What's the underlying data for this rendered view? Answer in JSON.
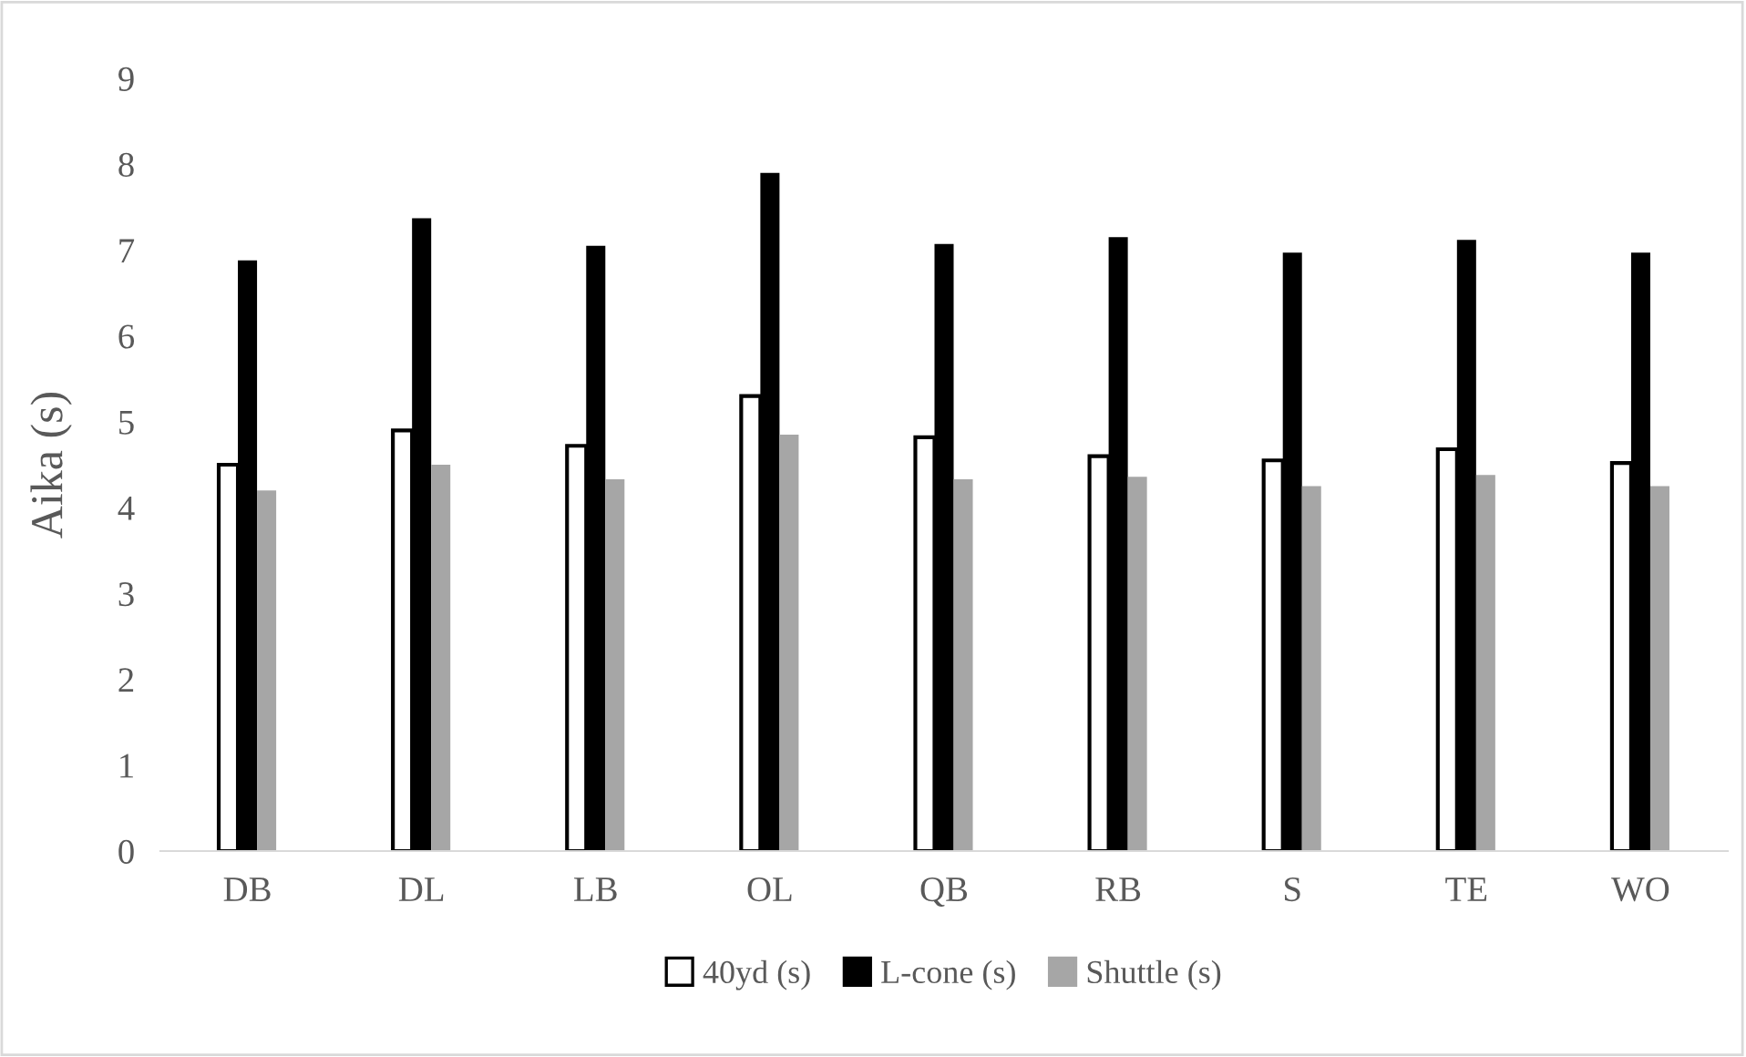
{
  "chart_data": {
    "type": "bar",
    "ylabel": "Aika (s)",
    "categories": [
      "DB",
      "DL",
      "LB",
      "OL",
      "QB",
      "RB",
      "S",
      "TE",
      "WO"
    ],
    "series": [
      {
        "name": "40yd (s)",
        "color": "#ffffff",
        "values": [
          4.5,
          4.9,
          4.72,
          5.3,
          4.82,
          4.6,
          4.55,
          4.68,
          4.52
        ]
      },
      {
        "name": "L-cone (s)",
        "color": "#000000",
        "values": [
          6.88,
          7.37,
          7.05,
          7.9,
          7.07,
          7.15,
          6.97,
          7.12,
          6.97
        ]
      },
      {
        "name": "Shuttle (s)",
        "color": "#a6a6a6",
        "values": [
          4.2,
          4.5,
          4.33,
          4.85,
          4.33,
          4.36,
          4.25,
          4.38,
          4.25
        ]
      }
    ],
    "ylim": [
      0,
      9
    ],
    "yticks": [
      0,
      1,
      2,
      3,
      4,
      5,
      6,
      7,
      8,
      9
    ],
    "grid": false,
    "legend": "bottom"
  }
}
